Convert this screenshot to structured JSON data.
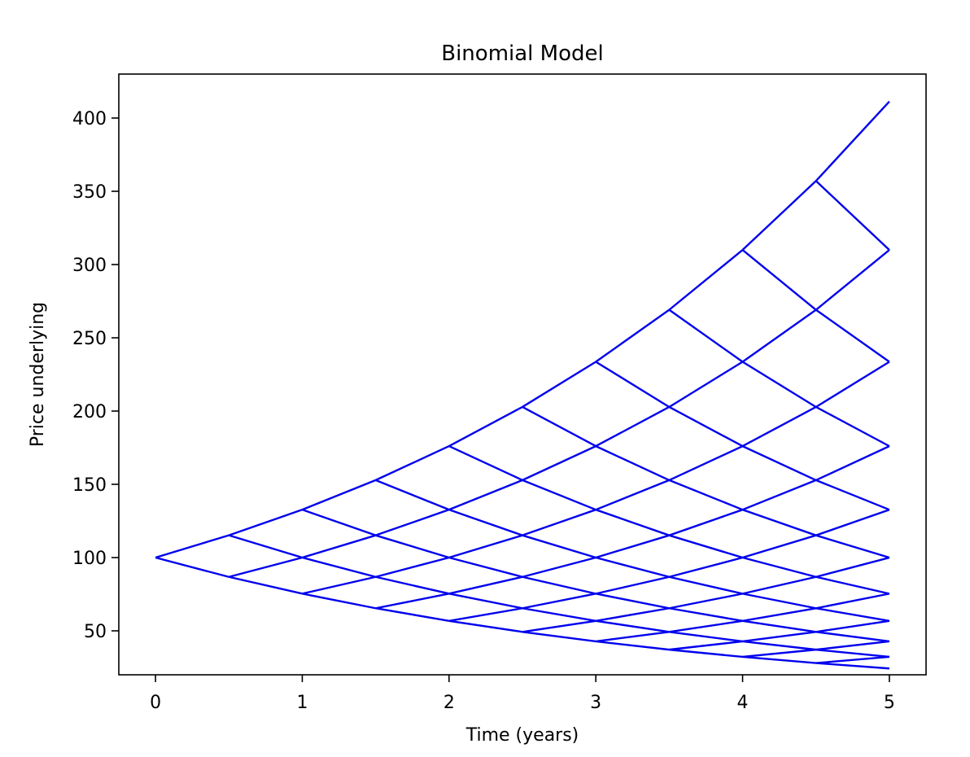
{
  "chart_data": {
    "type": "line",
    "title": "Binomial Model",
    "xlabel": "Time (years)",
    "ylabel": "Price underlying",
    "xlim": [
      -0.25,
      5.25
    ],
    "ylim": [
      20,
      430
    ],
    "xticks": [
      0,
      1,
      2,
      3,
      4,
      5
    ],
    "yticks": [
      50,
      100,
      150,
      200,
      250,
      300,
      350,
      400
    ],
    "grid": false,
    "legend": "none",
    "line_color": "#0000ee",
    "tree": {
      "start_price": 100,
      "up_factor": 1.1519,
      "down_factor": 0.8681,
      "time_step": 0.5,
      "steps": 10
    }
  }
}
